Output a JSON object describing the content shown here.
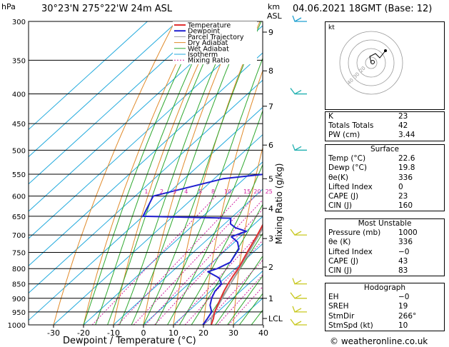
{
  "header": {
    "hpa_label": "hPa",
    "location": "30°23'N  275°22'W  24m  ASL",
    "km_label": "km",
    "asl_label": "ASL",
    "datetime": "04.06.2021  18GMT  (Base: 12)"
  },
  "chart_data": {
    "type": "skewt",
    "xlabel": "Dewpoint / Temperature (°C)",
    "ylabel_right": "Mixing Ratio (g/kg)",
    "pressure_ticks": [
      300,
      350,
      400,
      450,
      500,
      550,
      600,
      650,
      700,
      750,
      800,
      850,
      900,
      950,
      1000
    ],
    "temp_ticks": [
      -30,
      -20,
      -10,
      0,
      10,
      20,
      30,
      40
    ],
    "km_ticks": [
      {
        "km": "9",
        "p": 313
      },
      {
        "km": "8",
        "p": 365
      },
      {
        "km": "7",
        "p": 420
      },
      {
        "km": "6",
        "p": 490
      },
      {
        "km": "5",
        "p": 560
      },
      {
        "km": "4",
        "p": 630
      },
      {
        "km": "3",
        "p": 710
      },
      {
        "km": "2",
        "p": 795
      },
      {
        "km": "1",
        "p": 900
      },
      {
        "km": "LCL",
        "p": 975
      }
    ],
    "mixing_ratio_labels": [
      "1",
      "2",
      "3",
      "4",
      "5",
      "8",
      "10",
      "15",
      "20",
      "25"
    ],
    "mixing_ratio_values": [
      1,
      2,
      3,
      4,
      5,
      8,
      10,
      15,
      20,
      25
    ],
    "legend": [
      "Temperature",
      "Dewpoint",
      "Parcel Trajectory",
      "Dry Adiabat",
      "Wet Adiabat",
      "Isotherm",
      "Mixing Ratio"
    ],
    "colors": {
      "temperature": "#e03030",
      "dewpoint": "#2020d0",
      "parcel": "#a0a0a0",
      "dry_adiabat": "#e08a2a",
      "wet_adiabat": "#2ea82e",
      "isotherm": "#22aadd",
      "mixing_ratio": "#d020a0"
    },
    "temperature_profile": [
      [
        1000,
        22.6
      ],
      [
        975,
        21.0
      ],
      [
        950,
        19.0
      ],
      [
        925,
        17.5
      ],
      [
        900,
        16.0
      ],
      [
        875,
        14.5
      ],
      [
        850,
        13.2
      ],
      [
        825,
        12.0
      ],
      [
        800,
        11.0
      ],
      [
        775,
        9.5
      ],
      [
        750,
        8.0
      ],
      [
        725,
        6.5
      ],
      [
        700,
        5.0
      ],
      [
        650,
        1.5
      ],
      [
        600,
        -2.0
      ],
      [
        550,
        -6.0
      ],
      [
        500,
        -10.5
      ],
      [
        450,
        -16.0
      ],
      [
        400,
        -22.5
      ],
      [
        350,
        -30.0
      ],
      [
        300,
        -39.0
      ]
    ],
    "dewpoint_profile": [
      [
        1000,
        19.8
      ],
      [
        975,
        19.0
      ],
      [
        950,
        18.0
      ],
      [
        925,
        15.0
      ],
      [
        900,
        13.0
      ],
      [
        875,
        11.5
      ],
      [
        850,
        11.0
      ],
      [
        830,
        8.0
      ],
      [
        810,
        2.0
      ],
      [
        800,
        4.0
      ],
      [
        780,
        6.0
      ],
      [
        760,
        5.0
      ],
      [
        740,
        4.0
      ],
      [
        720,
        1.0
      ],
      [
        705,
        -3.0
      ],
      [
        690,
        0.0
      ],
      [
        680,
        -5.0
      ],
      [
        670,
        -8.0
      ],
      [
        655,
        -10.0
      ],
      [
        650,
        -40.0
      ],
      [
        600,
        -44.0
      ],
      [
        560,
        -27.0
      ],
      [
        550,
        -15.0
      ],
      [
        500,
        -20.0
      ],
      [
        450,
        -25.0
      ],
      [
        400,
        -34.0
      ],
      [
        350,
        -42.0
      ],
      [
        300,
        -53.0
      ]
    ],
    "parcel_profile": [
      [
        1000,
        22.6
      ],
      [
        975,
        20.3
      ],
      [
        950,
        19.0
      ],
      [
        900,
        16.5
      ],
      [
        850,
        14.0
      ],
      [
        800,
        11.5
      ],
      [
        750,
        8.5
      ],
      [
        700,
        5.5
      ],
      [
        650,
        2.0
      ],
      [
        600,
        -1.5
      ],
      [
        550,
        -6.0
      ],
      [
        500,
        -10.5
      ],
      [
        450,
        -16.0
      ],
      [
        400,
        -22.0
      ],
      [
        350,
        -29.5
      ],
      [
        300,
        -38.0
      ]
    ],
    "wind_barbs_p": [
      1000,
      950,
      900,
      850,
      700,
      500,
      400,
      300
    ]
  },
  "hodograph": {
    "unit_label": "kt",
    "ring_labels": [
      "20",
      "30",
      "40"
    ]
  },
  "indices": {
    "rows": [
      {
        "label": "K",
        "value": "23"
      },
      {
        "label": "Totals Totals",
        "value": "42"
      },
      {
        "label": "PW (cm)",
        "value": "3.44"
      }
    ]
  },
  "surface": {
    "title": "Surface",
    "rows": [
      {
        "label": "Temp (°C)",
        "value": "22.6"
      },
      {
        "label": "Dewp (°C)",
        "value": "19.8"
      },
      {
        "label": "θe(K)",
        "value": "336"
      },
      {
        "label": "Lifted Index",
        "value": "0"
      },
      {
        "label": "CAPE (J)",
        "value": "23"
      },
      {
        "label": "CIN (J)",
        "value": "160"
      }
    ]
  },
  "most_unstable": {
    "title": "Most Unstable",
    "rows": [
      {
        "label": "Pressure (mb)",
        "value": "1000"
      },
      {
        "label": "θe (K)",
        "value": "336"
      },
      {
        "label": "Lifted Index",
        "value": "−0"
      },
      {
        "label": "CAPE (J)",
        "value": "43"
      },
      {
        "label": "CIN (J)",
        "value": "83"
      }
    ]
  },
  "hodo_stats": {
    "title": "Hodograph",
    "rows": [
      {
        "label": "EH",
        "value": "−0"
      },
      {
        "label": "SREH",
        "value": "19"
      },
      {
        "label": "StmDir",
        "value": "266°"
      },
      {
        "label": "StmSpd (kt)",
        "value": "10"
      }
    ]
  },
  "footer": {
    "copyright": "© weatheronline.co.uk"
  }
}
